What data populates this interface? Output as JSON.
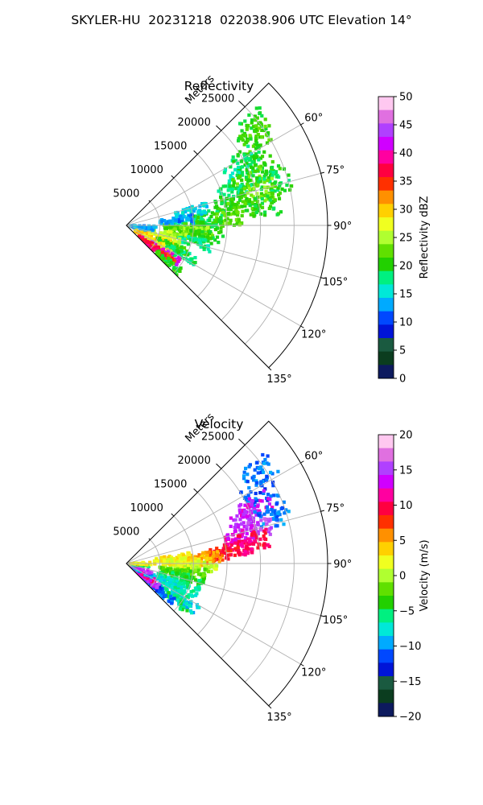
{
  "figure": {
    "title": "SKYLER-HU  20231218  022038.906 UTC Elevation 14°"
  },
  "chart_data": [
    {
      "type": "heatmap",
      "projection": "polar-sector",
      "title": "Reflectivity",
      "radial_label": "Meters",
      "radial_ticks": [
        5000,
        10000,
        15000,
        20000,
        25000
      ],
      "r_max": 30000,
      "angle_ticks": [
        60,
        75,
        90,
        105,
        120,
        135
      ],
      "angle_range_deg": [
        45,
        135
      ],
      "grid": true,
      "colorbar": {
        "label": "Reflectivity dBZ",
        "range": [
          0,
          50
        ],
        "ticks": [
          0,
          5,
          10,
          15,
          20,
          25,
          30,
          35,
          40,
          45,
          50
        ],
        "stops": [
          "#0d1a5e",
          "#0b3d1f",
          "#1a5a40",
          "#0014d8",
          "#0048ff",
          "#00aaff",
          "#00e8d8",
          "#00f080",
          "#22d000",
          "#60e000",
          "#b0ff30",
          "#f0ff20",
          "#ffd000",
          "#ff9000",
          "#ff3000",
          "#ff0040",
          "#ff00a0",
          "#d000ff",
          "#b040ff",
          "#e070e0",
          "#ffc8f0"
        ]
      },
      "echo_cells": [
        {
          "az": 52,
          "r": 24000,
          "dz": 20
        },
        {
          "az": 56,
          "r": 23000,
          "dz": 21
        },
        {
          "az": 60,
          "r": 21000,
          "dz": 19
        },
        {
          "az": 64,
          "r": 19000,
          "dz": 17
        },
        {
          "az": 68,
          "r": 22000,
          "dz": 20
        },
        {
          "az": 70,
          "r": 19500,
          "dz": 22
        },
        {
          "az": 72,
          "r": 17000,
          "dz": 18
        },
        {
          "az": 74,
          "r": 23000,
          "dz": 19
        },
        {
          "az": 76,
          "r": 20500,
          "dz": 23
        },
        {
          "az": 78,
          "r": 16000,
          "dz": 20
        },
        {
          "az": 80,
          "r": 18000,
          "dz": 21
        },
        {
          "az": 82,
          "r": 21000,
          "dz": 20
        },
        {
          "az": 84,
          "r": 12500,
          "dz": 19
        },
        {
          "az": 86,
          "r": 15000,
          "dz": 22
        },
        {
          "az": 88,
          "r": 9000,
          "dz": 17
        },
        {
          "az": 90,
          "r": 12000,
          "dz": 20
        },
        {
          "az": 92,
          "r": 8000,
          "dz": 22
        },
        {
          "az": 95,
          "r": 10500,
          "dz": 24
        },
        {
          "az": 98,
          "r": 12000,
          "dz": 20
        },
        {
          "az": 100,
          "r": 8500,
          "dz": 22
        },
        {
          "az": 102,
          "r": 6500,
          "dz": 25
        },
        {
          "az": 104,
          "r": 10500,
          "dz": 17
        },
        {
          "az": 108,
          "r": 6000,
          "dz": 26
        },
        {
          "az": 112,
          "r": 5000,
          "dz": 29
        },
        {
          "az": 115,
          "r": 7500,
          "dz": 20
        },
        {
          "az": 118,
          "r": 9500,
          "dz": 18
        },
        {
          "az": 120,
          "r": 4000,
          "dz": 30
        },
        {
          "az": 123,
          "r": 5500,
          "dz": 28
        },
        {
          "az": 125,
          "r": 7000,
          "dz": 42
        },
        {
          "az": 128,
          "r": 6500,
          "dz": 35
        },
        {
          "az": 130,
          "r": 5000,
          "dz": 38
        },
        {
          "az": 132,
          "r": 8000,
          "dz": 20
        },
        {
          "az": 100,
          "r": 1500,
          "dz": 12
        },
        {
          "az": 95,
          "r": 2000,
          "dz": 13
        },
        {
          "az": 78,
          "r": 10000,
          "dz": 14
        },
        {
          "az": 84,
          "r": 7500,
          "dz": 12
        }
      ]
    },
    {
      "type": "heatmap",
      "projection": "polar-sector",
      "title": "Velocity",
      "radial_label": "Meters",
      "radial_ticks": [
        5000,
        10000,
        15000,
        20000,
        25000
      ],
      "r_max": 30000,
      "angle_ticks": [
        60,
        75,
        90,
        105,
        120,
        135
      ],
      "angle_range_deg": [
        45,
        135
      ],
      "grid": true,
      "colorbar": {
        "label": "Velocity (m/s)",
        "range": [
          -20,
          20
        ],
        "ticks": [
          -20,
          -15,
          -10,
          -5,
          0,
          5,
          10,
          15,
          20
        ],
        "stops": [
          "#0d1a5e",
          "#0b3d1f",
          "#1a5a40",
          "#0014d8",
          "#0048ff",
          "#00aaff",
          "#00e8d8",
          "#00f080",
          "#22d000",
          "#60e000",
          "#b0ff30",
          "#f0ff20",
          "#ffd000",
          "#ff9000",
          "#ff3000",
          "#ff0040",
          "#ff00a0",
          "#d000ff",
          "#b040ff",
          "#e070e0",
          "#ffc8f0"
        ]
      },
      "echo_cells": [
        {
          "az": 55,
          "r": 24000,
          "v": -11
        },
        {
          "az": 62,
          "r": 22500,
          "v": -12
        },
        {
          "az": 66,
          "r": 21000,
          "v": 14
        },
        {
          "az": 70,
          "r": 19000,
          "v": 15
        },
        {
          "az": 72,
          "r": 23000,
          "v": -11
        },
        {
          "az": 75,
          "r": 20000,
          "v": 16
        },
        {
          "az": 77,
          "r": 17500,
          "v": 13
        },
        {
          "az": 80,
          "r": 19000,
          "v": 10
        },
        {
          "az": 82,
          "r": 16500,
          "v": 11
        },
        {
          "az": 84,
          "r": 14500,
          "v": 9
        },
        {
          "az": 86,
          "r": 12000,
          "v": 6
        },
        {
          "az": 88,
          "r": 10500,
          "v": 5
        },
        {
          "az": 90,
          "r": 9000,
          "v": 3
        },
        {
          "az": 92,
          "r": 11000,
          "v": 1
        },
        {
          "az": 95,
          "r": 8000,
          "v": 1
        },
        {
          "az": 98,
          "r": 10000,
          "v": -2
        },
        {
          "az": 100,
          "r": 7500,
          "v": -3
        },
        {
          "az": 104,
          "r": 9500,
          "v": -5
        },
        {
          "az": 108,
          "r": 7500,
          "v": -6
        },
        {
          "az": 112,
          "r": 9000,
          "v": -7
        },
        {
          "az": 116,
          "r": 6500,
          "v": -8
        },
        {
          "az": 120,
          "r": 8500,
          "v": -7
        },
        {
          "az": 124,
          "r": 10500,
          "v": -9
        },
        {
          "az": 127,
          "r": 9000,
          "v": -6
        },
        {
          "az": 130,
          "r": 6500,
          "v": -11
        },
        {
          "az": 128,
          "r": 4500,
          "v": -12
        },
        {
          "az": 126,
          "r": 3500,
          "v": 15
        },
        {
          "az": 122,
          "r": 2500,
          "v": 12
        },
        {
          "az": 118,
          "r": 1800,
          "v": -10
        },
        {
          "az": 110,
          "r": 1500,
          "v": 16
        },
        {
          "az": 98,
          "r": 1300,
          "v": -5
        },
        {
          "az": 90,
          "r": 1200,
          "v": 3
        },
        {
          "az": 84,
          "r": 7000,
          "v": 3
        },
        {
          "az": 88,
          "r": 6500,
          "v": 2
        }
      ]
    }
  ]
}
